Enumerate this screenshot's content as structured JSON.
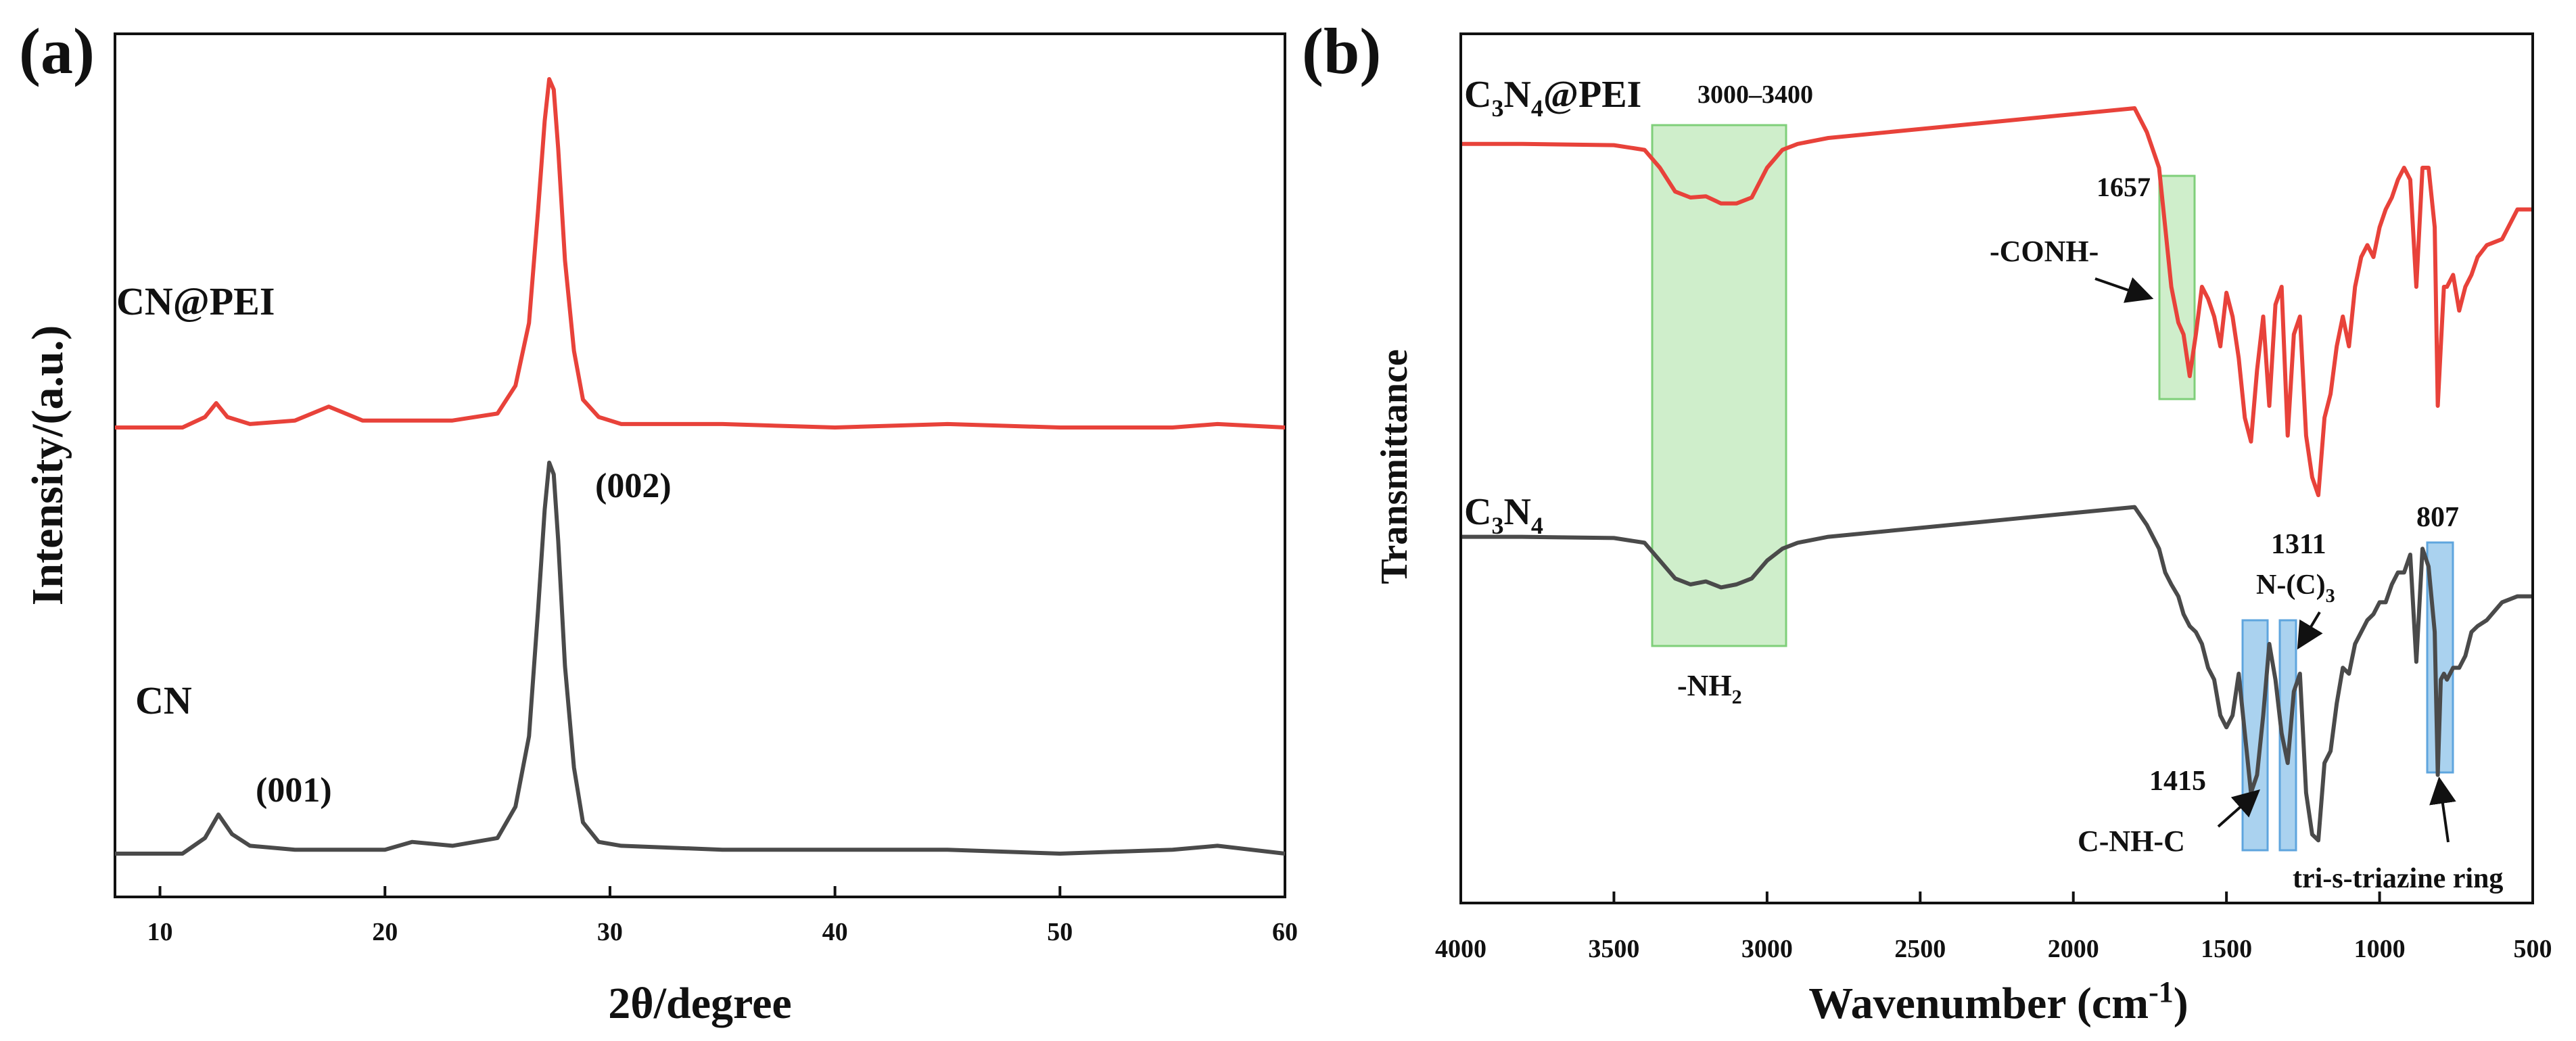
{
  "chart_data": [
    {
      "type": "line",
      "panel_label": "(a)",
      "xlabel": "2θ/degree",
      "ylabel": "Intensity/(a.u.)",
      "xlim": [
        8,
        60
      ],
      "xticks": [
        "10",
        "20",
        "30",
        "40",
        "50",
        "60"
      ],
      "series": [
        {
          "name": "CN@PEI",
          "color": "#e8423a",
          "x": [
            8,
            11,
            12.0,
            12.5,
            13.0,
            14,
            16,
            17.5,
            19,
            21,
            23,
            25.0,
            25.8,
            26.4,
            26.8,
            27.1,
            27.3,
            27.5,
            27.7,
            28.0,
            28.4,
            28.8,
            29.5,
            30.5,
            35,
            40,
            45,
            50,
            55,
            57,
            60
          ],
          "y": [
            0.0,
            0.0,
            0.03,
            0.07,
            0.03,
            0.01,
            0.02,
            0.06,
            0.02,
            0.02,
            0.02,
            0.04,
            0.12,
            0.3,
            0.62,
            0.88,
            1.0,
            0.97,
            0.8,
            0.48,
            0.22,
            0.08,
            0.03,
            0.01,
            0.01,
            0.0,
            0.01,
            0.0,
            0.0,
            0.01,
            0.0
          ]
        },
        {
          "name": "CN",
          "color": "#4a4a4a",
          "x": [
            8,
            11,
            12.0,
            12.6,
            13.2,
            14,
            16,
            18,
            20,
            21.2,
            23,
            25.0,
            25.8,
            26.4,
            26.8,
            27.1,
            27.3,
            27.5,
            27.7,
            28.0,
            28.4,
            28.8,
            29.5,
            30.5,
            35,
            40,
            45,
            50,
            55,
            57,
            60
          ],
          "y": [
            0.0,
            0.0,
            0.04,
            0.1,
            0.05,
            0.02,
            0.01,
            0.01,
            0.01,
            0.03,
            0.02,
            0.04,
            0.12,
            0.3,
            0.62,
            0.88,
            1.0,
            0.97,
            0.8,
            0.48,
            0.22,
            0.08,
            0.03,
            0.02,
            0.01,
            0.01,
            0.01,
            0.0,
            0.01,
            0.02,
            0.0
          ]
        }
      ],
      "series_labels": [
        "CN@PEI",
        "CN"
      ],
      "annotations": [
        "(002)",
        "(001)"
      ]
    },
    {
      "type": "line",
      "panel_label": "(b)",
      "xlabel": "Wavenumber (cm",
      "xlabel_sup": "-1",
      "xlabel_close": ")",
      "ylabel": "Transmittance",
      "xlim": [
        4000,
        500
      ],
      "xticks": [
        "4000",
        "3500",
        "3000",
        "2500",
        "2000",
        "1500",
        "1000",
        "500"
      ],
      "series": [
        {
          "name": "C3N4@PEI",
          "color": "#e8423a",
          "x": [
            4000,
            3800,
            3500,
            3400,
            3350,
            3300,
            3250,
            3200,
            3150,
            3100,
            3050,
            3000,
            2950,
            2900,
            2800,
            2600,
            2400,
            2200,
            2000,
            1800,
            1760,
            1720,
            1700,
            1680,
            1657,
            1640,
            1620,
            1600,
            1580,
            1560,
            1540,
            1520,
            1500,
            1480,
            1460,
            1440,
            1420,
            1400,
            1380,
            1360,
            1340,
            1320,
            1300,
            1280,
            1260,
            1240,
            1220,
            1200,
            1180,
            1160,
            1140,
            1120,
            1100,
            1080,
            1060,
            1040,
            1020,
            1000,
            980,
            960,
            940,
            920,
            900,
            880,
            860,
            840,
            820,
            810,
            800,
            790,
            780,
            760,
            740,
            720,
            700,
            680,
            650,
            600,
            550,
            500
          ],
          "y": [
            0.06,
            0.06,
            0.062,
            0.07,
            0.1,
            0.14,
            0.15,
            0.148,
            0.16,
            0.16,
            0.15,
            0.1,
            0.07,
            0.06,
            0.05,
            0.04,
            0.03,
            0.02,
            0.01,
            0.0,
            0.04,
            0.1,
            0.2,
            0.3,
            0.36,
            0.38,
            0.45,
            0.38,
            0.3,
            0.32,
            0.35,
            0.4,
            0.31,
            0.35,
            0.42,
            0.52,
            0.56,
            0.44,
            0.35,
            0.5,
            0.33,
            0.3,
            0.55,
            0.38,
            0.35,
            0.55,
            0.62,
            0.65,
            0.52,
            0.48,
            0.4,
            0.35,
            0.4,
            0.3,
            0.25,
            0.23,
            0.25,
            0.2,
            0.17,
            0.15,
            0.12,
            0.1,
            0.12,
            0.3,
            0.1,
            0.1,
            0.2,
            0.5,
            0.4,
            0.3,
            0.3,
            0.28,
            0.34,
            0.3,
            0.28,
            0.25,
            0.23,
            0.22,
            0.17,
            0.17
          ]
        },
        {
          "name": "C3N4",
          "color": "#4a4a4a",
          "x": [
            4000,
            3800,
            3500,
            3400,
            3350,
            3300,
            3250,
            3200,
            3150,
            3100,
            3050,
            3000,
            2950,
            2900,
            2800,
            2600,
            2400,
            2200,
            2000,
            1800,
            1760,
            1720,
            1700,
            1680,
            1657,
            1640,
            1620,
            1600,
            1580,
            1560,
            1540,
            1520,
            1500,
            1480,
            1460,
            1440,
            1420,
            1400,
            1380,
            1360,
            1340,
            1320,
            1300,
            1280,
            1260,
            1240,
            1220,
            1200,
            1180,
            1160,
            1140,
            1120,
            1100,
            1080,
            1060,
            1040,
            1020,
            1000,
            980,
            960,
            940,
            920,
            900,
            880,
            860,
            840,
            820,
            810,
            800,
            790,
            780,
            760,
            740,
            720,
            700,
            680,
            650,
            600,
            550,
            500
          ],
          "y": [
            0.72,
            0.72,
            0.722,
            0.73,
            0.76,
            0.79,
            0.8,
            0.795,
            0.805,
            0.8,
            0.79,
            0.76,
            0.74,
            0.73,
            0.72,
            0.71,
            0.7,
            0.69,
            0.68,
            0.67,
            0.7,
            0.74,
            0.78,
            0.8,
            0.82,
            0.85,
            0.87,
            0.88,
            0.9,
            0.94,
            0.96,
            1.02,
            1.04,
            1.02,
            0.95,
            1.05,
            1.15,
            1.12,
            1.02,
            0.9,
            0.96,
            1.05,
            1.1,
            0.98,
            0.95,
            1.15,
            1.22,
            1.23,
            1.1,
            1.08,
            1.0,
            0.94,
            0.95,
            0.9,
            0.88,
            0.86,
            0.85,
            0.83,
            0.83,
            0.8,
            0.78,
            0.78,
            0.75,
            0.93,
            0.74,
            0.77,
            0.88,
            1.12,
            0.96,
            0.95,
            0.96,
            0.94,
            0.94,
            0.92,
            0.88,
            0.87,
            0.86,
            0.83,
            0.82,
            0.82
          ]
        }
      ],
      "series_labels": {
        "pei_main": "C",
        "pei_sub1": "3",
        "pei_mid": "N",
        "pei_sub2": "4",
        "pei_tail": "@PEI",
        "cn_main": "C",
        "cn_sub1": "3",
        "cn_mid": "N",
        "cn_sub2": "4"
      },
      "highlight_color_green": "#a8e0a0",
      "highlight_color_blue": "#8ec3ea",
      "annotations": {
        "range_3000_3400": "3000–3400",
        "nh2_main": "-NH",
        "nh2_sub": "2",
        "w1657": "1657",
        "conh": "-CONH-",
        "w1311": "1311",
        "nc3_main": "N-(C)",
        "nc3_sub": "3",
        "w807": "807",
        "w1415": "1415",
        "cnhc": "C-NH-C",
        "triazine": "tri-s-triazine ring"
      }
    }
  ]
}
